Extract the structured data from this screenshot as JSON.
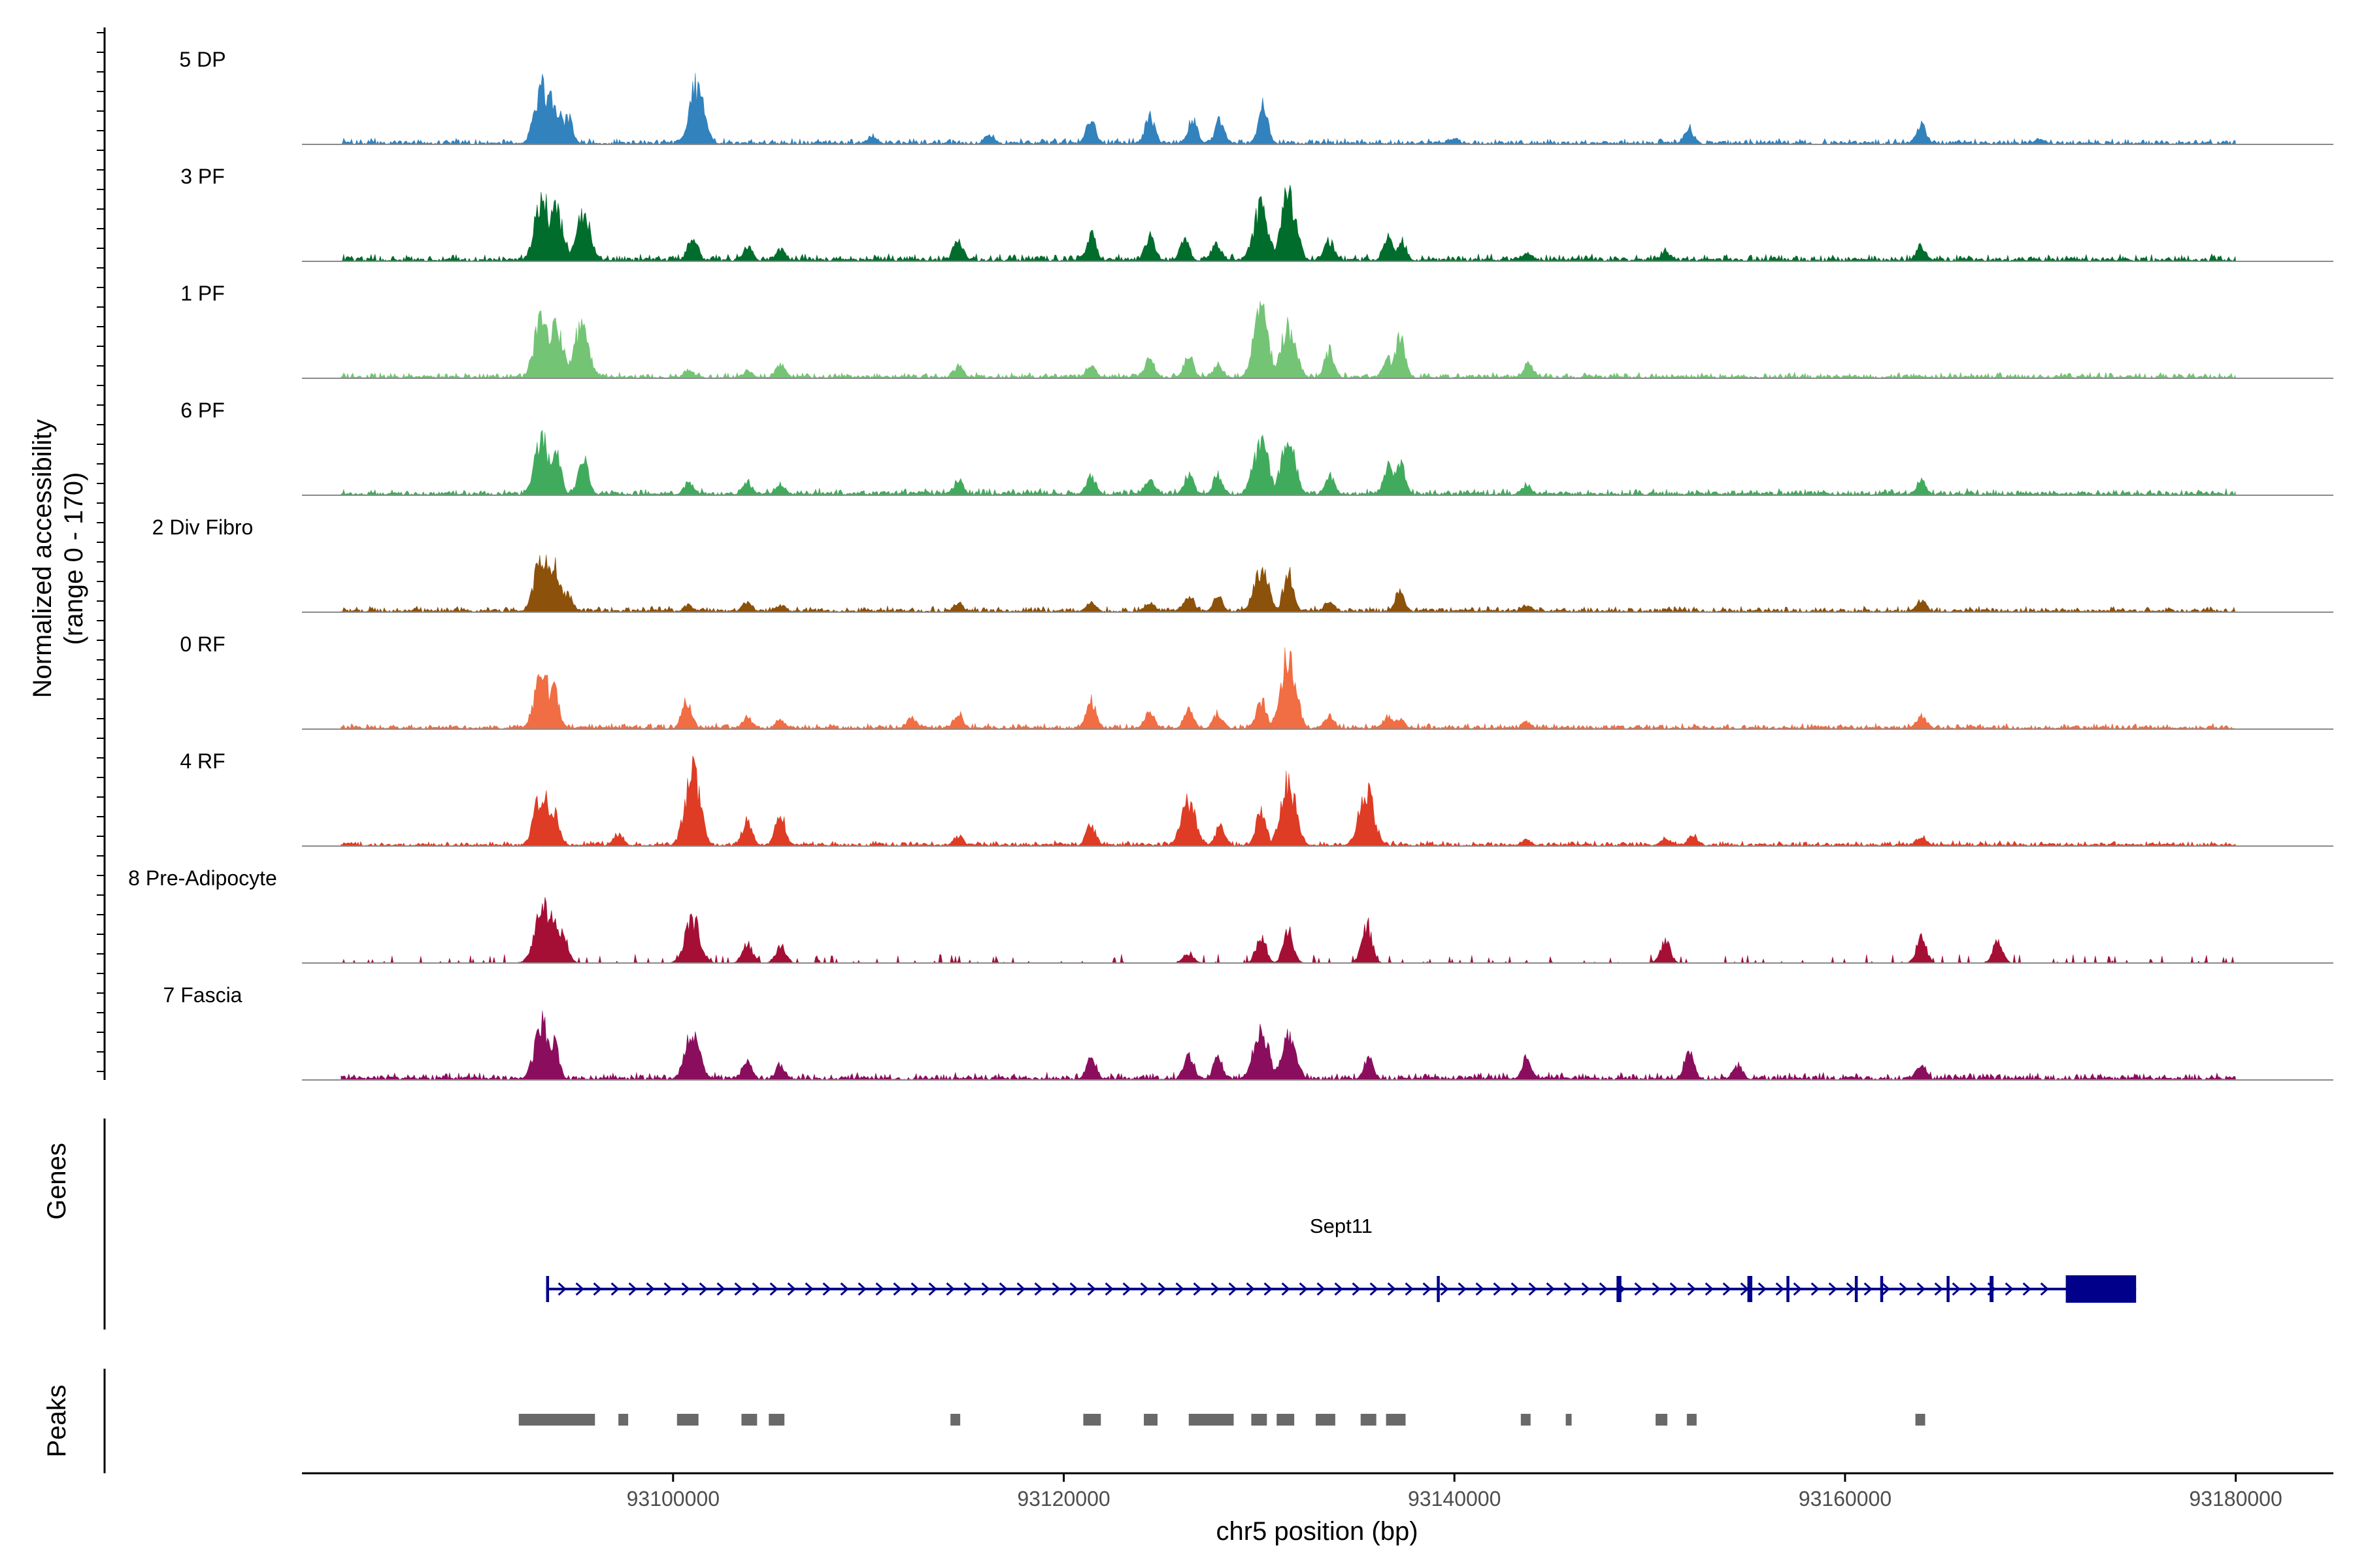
{
  "chart_data": {
    "type": "area",
    "title": "",
    "ylabel_line1": "Normalized accessibility",
    "ylabel_line2": "(range 0 - 170)",
    "y_range": [
      0,
      170
    ],
    "xlabel": "chr5 position (bp)",
    "chromosome": "chr5",
    "x_range": [
      93081000,
      93185000
    ],
    "x_ticks": [
      93100000,
      93120000,
      93140000,
      93160000,
      93180000
    ],
    "x_tick_labels": [
      "93100000",
      "93120000",
      "93140000",
      "93160000",
      "93180000"
    ],
    "tracks": [
      {
        "name": "5 DP",
        "color": "#3182bd",
        "peaks": [
          [
            93093300,
            112
          ],
          [
            93093700,
            90
          ],
          [
            93094100,
            70
          ],
          [
            93094600,
            55
          ],
          [
            93101200,
            117
          ],
          [
            93110200,
            18
          ],
          [
            93116200,
            22
          ],
          [
            93121400,
            48
          ],
          [
            93124400,
            55
          ],
          [
            93126600,
            52
          ],
          [
            93128000,
            48
          ],
          [
            93130200,
            75
          ],
          [
            93140000,
            12
          ],
          [
            93152000,
            34
          ],
          [
            93163900,
            38
          ],
          [
            93170000,
            12
          ]
        ],
        "noise": 8
      },
      {
        "name": "3 PF",
        "color": "#006d2c",
        "peaks": [
          [
            93093300,
            124
          ],
          [
            93094000,
            100
          ],
          [
            93095400,
            90
          ],
          [
            93101000,
            52
          ],
          [
            93103800,
            30
          ],
          [
            93105500,
            24
          ],
          [
            93114600,
            44
          ],
          [
            93121400,
            52
          ],
          [
            93124400,
            48
          ],
          [
            93126200,
            40
          ],
          [
            93127800,
            38
          ],
          [
            93130100,
            105
          ],
          [
            93131500,
            135
          ],
          [
            93133600,
            42
          ],
          [
            93136600,
            48
          ],
          [
            93137300,
            40
          ],
          [
            93143700,
            18
          ],
          [
            93150800,
            22
          ],
          [
            93163900,
            32
          ]
        ],
        "noise": 10
      },
      {
        "name": "1 PF",
        "color": "#74c476",
        "peaks": [
          [
            93093300,
            128
          ],
          [
            93094000,
            100
          ],
          [
            93095300,
            105
          ],
          [
            93100800,
            18
          ],
          [
            93103800,
            15
          ],
          [
            93105500,
            28
          ],
          [
            93114600,
            25
          ],
          [
            93121400,
            28
          ],
          [
            93124400,
            40
          ],
          [
            93126400,
            45
          ],
          [
            93127900,
            28
          ],
          [
            93130100,
            128
          ],
          [
            93131500,
            102
          ],
          [
            93133600,
            55
          ],
          [
            93136600,
            40
          ],
          [
            93137200,
            80
          ],
          [
            93143800,
            30
          ]
        ],
        "noise": 8
      },
      {
        "name": "6 PF",
        "color": "#41ab5d",
        "peaks": [
          [
            93093300,
            112
          ],
          [
            93094000,
            80
          ],
          [
            93095400,
            75
          ],
          [
            93100800,
            25
          ],
          [
            93103800,
            28
          ],
          [
            93105500,
            22
          ],
          [
            93114600,
            30
          ],
          [
            93121400,
            38
          ],
          [
            93124400,
            35
          ],
          [
            93126400,
            40
          ],
          [
            93127900,
            42
          ],
          [
            93130100,
            108
          ],
          [
            93131500,
            102
          ],
          [
            93133600,
            40
          ],
          [
            93136600,
            55
          ],
          [
            93137200,
            70
          ],
          [
            93143700,
            22
          ],
          [
            93163900,
            28
          ]
        ],
        "noise": 9
      },
      {
        "name": "2 Div Fibro",
        "color": "#8c510a",
        "peaks": [
          [
            93093300,
            118
          ],
          [
            93093900,
            90
          ],
          [
            93094600,
            40
          ],
          [
            93100800,
            15
          ],
          [
            93103800,
            20
          ],
          [
            93105500,
            15
          ],
          [
            93114600,
            18
          ],
          [
            93121400,
            22
          ],
          [
            93124400,
            22
          ],
          [
            93126400,
            35
          ],
          [
            93127900,
            30
          ],
          [
            93130100,
            85
          ],
          [
            93131500,
            78
          ],
          [
            93133600,
            22
          ],
          [
            93137200,
            40
          ],
          [
            93143700,
            15
          ],
          [
            93163900,
            26
          ]
        ],
        "noise": 8
      },
      {
        "name": "0 RF",
        "color": "#f16d43",
        "peaks": [
          [
            93093300,
            112
          ],
          [
            93093900,
            80
          ],
          [
            93100700,
            60
          ],
          [
            93103800,
            25
          ],
          [
            93105500,
            20
          ],
          [
            93112200,
            22
          ],
          [
            93114600,
            32
          ],
          [
            93121400,
            58
          ],
          [
            93124400,
            35
          ],
          [
            93126400,
            38
          ],
          [
            93127900,
            32
          ],
          [
            93130100,
            58
          ],
          [
            93131500,
            150
          ],
          [
            93133600,
            28
          ],
          [
            93136600,
            25
          ],
          [
            93137200,
            22
          ],
          [
            93143700,
            15
          ],
          [
            93163900,
            28
          ]
        ],
        "noise": 8
      },
      {
        "name": "4 RF",
        "color": "#de3c25",
        "peaks": [
          [
            93093300,
            110
          ],
          [
            93093900,
            70
          ],
          [
            93097200,
            25
          ],
          [
            93101000,
            148
          ],
          [
            93103800,
            52
          ],
          [
            93105500,
            62
          ],
          [
            93114600,
            20
          ],
          [
            93121400,
            40
          ],
          [
            93126400,
            88
          ],
          [
            93128000,
            38
          ],
          [
            93130100,
            68
          ],
          [
            93131500,
            130
          ],
          [
            93135500,
            110
          ],
          [
            93143700,
            12
          ],
          [
            93150800,
            18
          ],
          [
            93152200,
            22
          ],
          [
            93163900,
            20
          ]
        ],
        "noise": 7
      },
      {
        "name": "8 Pre-Adipocyte",
        "color": "#a50f35",
        "peaks": [
          [
            93093300,
            125
          ],
          [
            93093900,
            100
          ],
          [
            93094400,
            50
          ],
          [
            93101000,
            88
          ],
          [
            93103800,
            38
          ],
          [
            93105500,
            35
          ],
          [
            93126400,
            20
          ],
          [
            93130100,
            55
          ],
          [
            93131500,
            62
          ],
          [
            93135500,
            78
          ],
          [
            93150800,
            42
          ],
          [
            93163900,
            48
          ],
          [
            93167800,
            40
          ]
        ],
        "noise": 14,
        "sparse": true
      },
      {
        "name": "7 Fascia",
        "color": "#8b0e5e",
        "peaks": [
          [
            93093300,
            112
          ],
          [
            93093900,
            78
          ],
          [
            93101000,
            95
          ],
          [
            93103800,
            40
          ],
          [
            93105500,
            30
          ],
          [
            93121400,
            45
          ],
          [
            93126400,
            55
          ],
          [
            93127900,
            42
          ],
          [
            93130100,
            100
          ],
          [
            93131500,
            88
          ],
          [
            93135600,
            45
          ],
          [
            93143700,
            45
          ],
          [
            93152000,
            55
          ],
          [
            93154500,
            30
          ],
          [
            93163900,
            30
          ]
        ],
        "noise": 10
      }
    ],
    "genes_label": "Genes",
    "gene": {
      "name": "Sept11",
      "start": 93093500,
      "end": 93174900,
      "strand": "+",
      "exons": [
        [
          93093500,
          93093650
        ],
        [
          93139100,
          93139250
        ],
        [
          93148300,
          93148550
        ],
        [
          93155000,
          93155250
        ],
        [
          93157000,
          93157150
        ],
        [
          93160500,
          93160650
        ],
        [
          93161800,
          93161950
        ],
        [
          93165200,
          93165350
        ],
        [
          93167400,
          93167600
        ],
        [
          93171300,
          93174900
        ]
      ],
      "color": "#00008b"
    },
    "peaks_label": "Peaks",
    "peaks_color": "#696969",
    "peak_regions": [
      [
        93092100,
        93096000
      ],
      [
        93097200,
        93097700
      ],
      [
        93100200,
        93101300
      ],
      [
        93103500,
        93104300
      ],
      [
        93104900,
        93105700
      ],
      [
        93114200,
        93114700
      ],
      [
        93121000,
        93121900
      ],
      [
        93124100,
        93124800
      ],
      [
        93126400,
        93128700
      ],
      [
        93129600,
        93130400
      ],
      [
        93130900,
        93131800
      ],
      [
        93132900,
        93133900
      ],
      [
        93135200,
        93136000
      ],
      [
        93136500,
        93137500
      ],
      [
        93143400,
        93143900
      ],
      [
        93145700,
        93146000
      ],
      [
        93150300,
        93150900
      ],
      [
        93151900,
        93152400
      ],
      [
        93163600,
        93164100
      ]
    ]
  }
}
